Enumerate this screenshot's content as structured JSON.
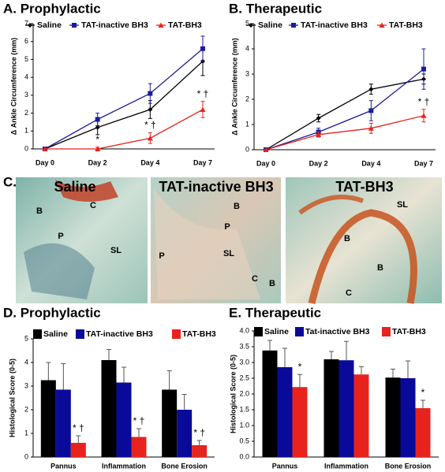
{
  "chart_data": [
    {
      "type": "line",
      "title": "A. Prophylactic",
      "y_label": "Δ Ankle Circumference (mm)",
      "categories": [
        "Day 0",
        "Day 2",
        "Day 4",
        "Day 7"
      ],
      "ylim": [
        0,
        7
      ],
      "yticks": [
        0,
        1,
        2,
        3,
        4,
        5,
        6,
        7
      ],
      "series": [
        {
          "name": "Saline",
          "color": "#000000",
          "marker": "diamond",
          "values": [
            0,
            1.2,
            2.2,
            4.9
          ],
          "errors": [
            0,
            0.4,
            0.5,
            0.8
          ]
        },
        {
          "name": "TAT-inactive BH3",
          "color": "#1c1c9c",
          "marker": "square",
          "values": [
            0,
            1.65,
            3.1,
            5.6
          ],
          "errors": [
            0,
            0.35,
            0.55,
            0.7
          ]
        },
        {
          "name": "TAT-BH3",
          "color": "#e8231d",
          "marker": "triangle",
          "values": [
            0,
            0,
            0.6,
            2.2
          ],
          "errors": [
            0,
            0.1,
            0.3,
            0.45
          ]
        }
      ],
      "annotations": [
        {
          "text": "*",
          "category": "Day 2",
          "series": "TAT-BH3"
        },
        {
          "text": "* †",
          "category": "Day 4",
          "series": "TAT-BH3"
        },
        {
          "text": "* †",
          "category": "Day 7",
          "series": "TAT-BH3"
        }
      ]
    },
    {
      "type": "line",
      "title": "B. Therapeutic",
      "y_label": "Δ Ankle Circumference (mm)",
      "categories": [
        "Day 0",
        "Day 2",
        "Day 4",
        "Day 7"
      ],
      "ylim": [
        0,
        5
      ],
      "yticks": [
        0,
        1,
        2,
        3,
        4,
        5
      ],
      "series": [
        {
          "name": "Saline",
          "color": "#000000",
          "marker": "diamond",
          "values": [
            0,
            1.25,
            2.4,
            2.8
          ],
          "errors": [
            0,
            0.15,
            0.2,
            0.2
          ]
        },
        {
          "name": "TAT-inactive BH3",
          "color": "#1c1c9c",
          "marker": "square",
          "values": [
            0,
            0.7,
            1.55,
            3.2
          ],
          "errors": [
            0,
            0.15,
            0.4,
            0.8
          ]
        },
        {
          "name": "TAT-BH3",
          "color": "#e8231d",
          "marker": "triangle",
          "values": [
            0,
            0.6,
            0.85,
            1.35
          ],
          "errors": [
            0,
            0.1,
            0.2,
            0.25
          ]
        }
      ],
      "annotations": [
        {
          "text": "* †",
          "category": "Day 7",
          "series": "TAT-BH3"
        }
      ]
    },
    {
      "type": "bar",
      "title": "D. Prophylactic",
      "y_label": "Histological Score (0-5)",
      "categories": [
        "Pannus",
        "Inflammation",
        "Bone Erosion"
      ],
      "ylim": [
        0,
        5
      ],
      "yticks": [
        0,
        1,
        2,
        3,
        4,
        5
      ],
      "series": [
        {
          "name": "Saline",
          "color": "#000000",
          "values": [
            3.25,
            4.1,
            2.85
          ],
          "errors": [
            0.75,
            0.45,
            0.8
          ]
        },
        {
          "name": "TAT-inactive BH3",
          "color": "#0a0a9a",
          "values": [
            2.85,
            3.15,
            2.0
          ],
          "errors": [
            1.1,
            0.65,
            0.65
          ]
        },
        {
          "name": "TAT-BH3",
          "color": "#e8231d",
          "values": [
            0.6,
            0.85,
            0.5
          ],
          "errors": [
            0.3,
            0.35,
            0.2
          ]
        }
      ],
      "annotations": [
        {
          "text": "* †",
          "category": "Pannus",
          "series": "TAT-BH3"
        },
        {
          "text": "* †",
          "category": "Inflammation",
          "series": "TAT-BH3"
        },
        {
          "text": "* †",
          "category": "Bone Erosion",
          "series": "TAT-BH3"
        }
      ]
    },
    {
      "type": "bar",
      "title": "E. Therapeutic",
      "y_label": "Histological Score (0-5)",
      "categories": [
        "Pannus",
        "Inflammation",
        "Bone Erosion"
      ],
      "ylim": [
        0,
        4
      ],
      "yticks": [
        {
          "value": 0,
          "label": "0.0"
        },
        {
          "value": 0.5,
          "label": "0.5"
        },
        {
          "value": 1,
          "label": "1.0"
        },
        {
          "value": 1.5,
          "label": "1.5"
        },
        {
          "value": 2,
          "label": "2.0"
        },
        {
          "value": 2.5,
          "label": "2.5"
        },
        {
          "value": 3,
          "label": "3.0"
        },
        {
          "value": 3.5,
          "label": "3.5"
        },
        {
          "value": 4,
          "label": "4.0"
        }
      ],
      "series": [
        {
          "name": "Saline",
          "color": "#000000",
          "values": [
            3.38,
            3.1,
            2.52
          ],
          "errors": [
            0.32,
            0.25,
            0.27
          ]
        },
        {
          "name": "Tat-inactive BH3",
          "color": "#0a0a9a",
          "values": [
            2.85,
            3.07,
            2.5
          ],
          "errors": [
            0.6,
            0.6,
            0.55
          ]
        },
        {
          "name": "TAT-BH3",
          "color": "#e8231d",
          "values": [
            2.22,
            2.62,
            1.55
          ],
          "errors": [
            0.4,
            0.25,
            0.25
          ]
        }
      ],
      "annotations": [
        {
          "text": "*",
          "category": "Pannus",
          "series": "TAT-BH3"
        },
        {
          "text": "*",
          "category": "Bone Erosion",
          "series": "TAT-BH3"
        }
      ]
    }
  ],
  "histology": {
    "label": "C.",
    "panels": [
      {
        "title": "Saline",
        "labels": [
          "B",
          "C",
          "P",
          "SL"
        ]
      },
      {
        "title": "TAT-inactive BH3",
        "labels": [
          "B",
          "P",
          "P",
          "SL",
          "C",
          "B"
        ]
      },
      {
        "title": "TAT-BH3",
        "labels": [
          "SL",
          "B",
          "B",
          "C"
        ]
      }
    ]
  }
}
